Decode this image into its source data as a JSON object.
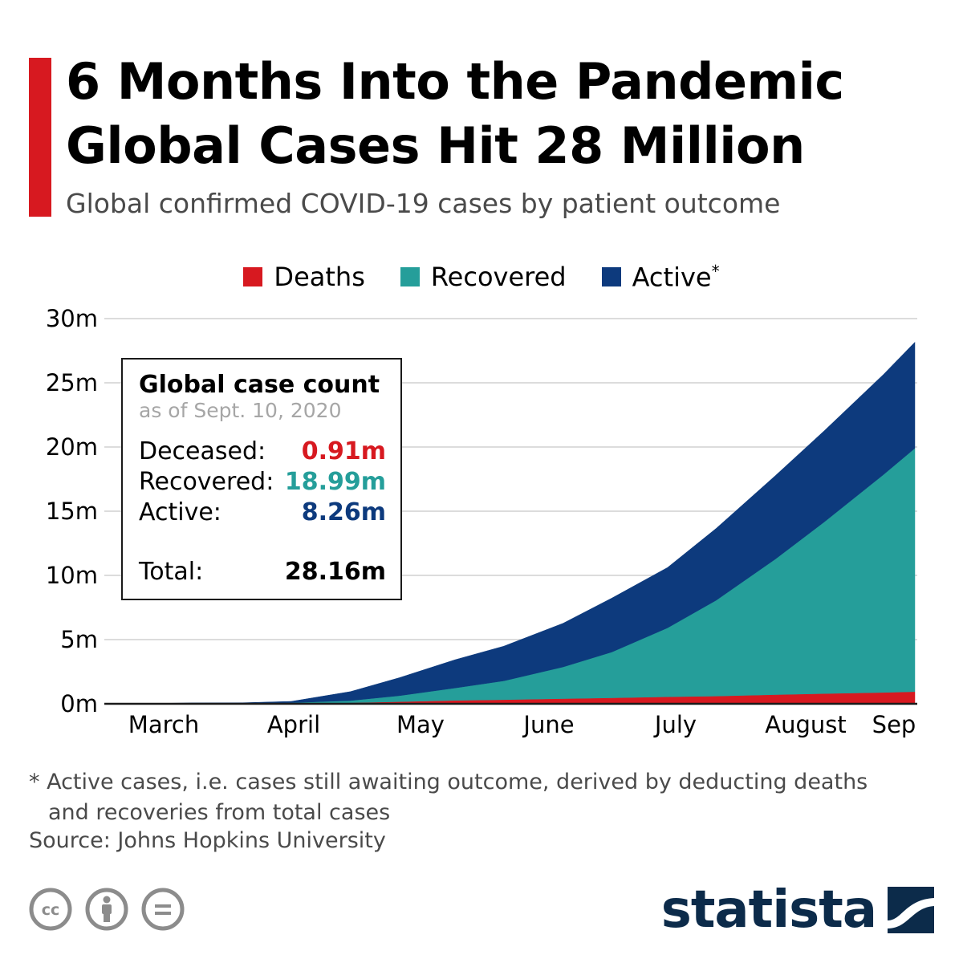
{
  "header": {
    "title_line1": "6 Months Into the Pandemic",
    "title_line2": "Global Cases Hit 28 Million",
    "subtitle": "Global confirmed COVID-19 cases by patient outcome"
  },
  "colors": {
    "accent": "#d71920",
    "deaths": "#d71920",
    "recovered": "#259e9a",
    "active": "#0d3a7d",
    "brand": "#0c2b4a"
  },
  "legend": {
    "deaths": "Deaths",
    "recovered": "Recovered",
    "active": "Active",
    "active_mark": "*"
  },
  "info_box": {
    "title": "Global case count",
    "date": "as of Sept. 10, 2020",
    "rows": [
      {
        "label": "Deceased:",
        "value": "0.91m"
      },
      {
        "label": "Recovered:",
        "value": "18.99m"
      },
      {
        "label": "Active:",
        "value": "8.26m"
      }
    ],
    "total_label": "Total:",
    "total_value": "28.16m"
  },
  "chart_data": {
    "type": "area",
    "stacked": true,
    "ylim": [
      0,
      30
    ],
    "y_ticks": [
      0,
      5,
      10,
      15,
      20,
      25,
      30
    ],
    "y_tick_labels": [
      "0m",
      "5m",
      "10m",
      "15m",
      "20m",
      "25m",
      "30m"
    ],
    "x_tick_labels": [
      "March",
      "April",
      "May",
      "June",
      "July",
      "August",
      "Sep"
    ],
    "x_tick_dates": [
      "2020-03-01",
      "2020-04-01",
      "2020-05-01",
      "2020-06-01",
      "2020-07-01",
      "2020-08-01",
      "2020-09-01"
    ],
    "grid": true,
    "legend_position": "top-center",
    "x": [
      "2020-01-22",
      "2020-02-01",
      "2020-02-15",
      "2020-03-01",
      "2020-03-15",
      "2020-04-01",
      "2020-04-15",
      "2020-05-01",
      "2020-05-15",
      "2020-06-01",
      "2020-06-15",
      "2020-07-01",
      "2020-07-15",
      "2020-08-01",
      "2020-08-15",
      "2020-09-01",
      "2020-09-10"
    ],
    "series": [
      {
        "name": "Deaths",
        "values": [
          0,
          0,
          0,
          0,
          0.01,
          0.05,
          0.13,
          0.23,
          0.29,
          0.37,
          0.43,
          0.51,
          0.57,
          0.68,
          0.76,
          0.85,
          0.91
        ]
      },
      {
        "name": "Recovered",
        "values": [
          0,
          0,
          0.01,
          0.04,
          0.08,
          0.2,
          0.5,
          1.0,
          1.5,
          2.5,
          3.6,
          5.4,
          7.5,
          10.6,
          13.4,
          17.0,
          18.99
        ]
      },
      {
        "name": "Active",
        "values": [
          0,
          0.01,
          0.06,
          0.04,
          0.1,
          0.7,
          1.4,
          2.2,
          2.7,
          3.4,
          4.2,
          4.7,
          5.6,
          6.5,
          7.1,
          7.8,
          8.26
        ]
      }
    ]
  },
  "footnote": {
    "line1": "* Active cases, i.e. cases still awaiting outcome, derived by deducting deaths",
    "line2": "and recoveries from total cases"
  },
  "source": "Source: Johns Hopkins University",
  "brand": {
    "name": "statista",
    "icons": [
      "cc-icon",
      "by-icon",
      "nd-icon",
      "statista-logo-icon"
    ]
  }
}
